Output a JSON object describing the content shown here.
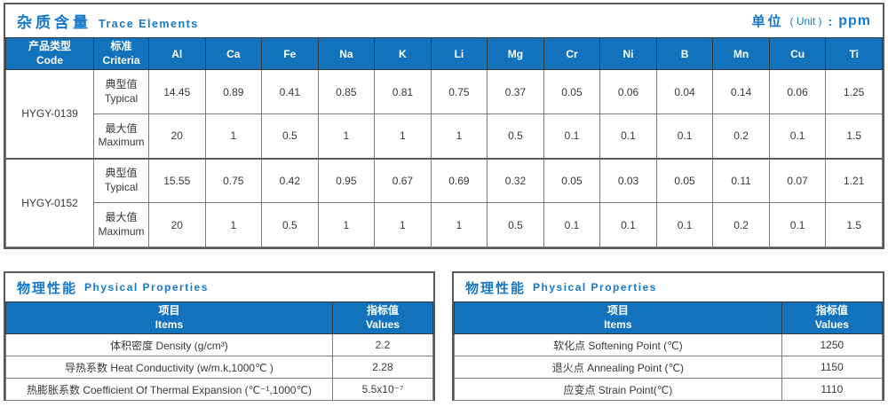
{
  "trace": {
    "title_cn": "杂质含量",
    "title_en": "Trace Elements",
    "unit": {
      "cn": "单位",
      "en": "( Unit )",
      "colon": ":",
      "value": "ppm"
    },
    "header": {
      "code_cn": "产品类型",
      "code_en": "Code",
      "criteria_cn": "标准",
      "criteria_en": "Criteria"
    },
    "elements": [
      "Al",
      "Ca",
      "Fe",
      "Na",
      "K",
      "Li",
      "Mg",
      "Cr",
      "Ni",
      "B",
      "Mn",
      "Cu",
      "Ti"
    ],
    "labels": {
      "typical_cn": "典型值",
      "typical_en": "Typical",
      "maximum_cn": "最大值",
      "maximum_en": "Maximum"
    },
    "rows": [
      {
        "code": "HYGY-0139",
        "typical": [
          "14.45",
          "0.89",
          "0.41",
          "0.85",
          "0.81",
          "0.75",
          "0.37",
          "0.05",
          "0.06",
          "0.04",
          "0.14",
          "0.06",
          "1.25"
        ],
        "maximum": [
          "20",
          "1",
          "0.5",
          "1",
          "1",
          "1",
          "0.5",
          "0.1",
          "0.1",
          "0.1",
          "0.2",
          "0.1",
          "1.5"
        ]
      },
      {
        "code": "HYGY-0152",
        "typical": [
          "15.55",
          "0.75",
          "0.42",
          "0.95",
          "0.67",
          "0.69",
          "0.32",
          "0.05",
          "0.03",
          "0.05",
          "0.11",
          "0.07",
          "1.21"
        ],
        "maximum": [
          "20",
          "1",
          "0.5",
          "1",
          "1",
          "1",
          "0.5",
          "0.1",
          "0.1",
          "0.1",
          "0.2",
          "0.1",
          "1.5"
        ]
      }
    ]
  },
  "phys_left": {
    "title_cn": "物理性能",
    "title_en": "Physical Properties",
    "header": {
      "item_cn": "项目",
      "item_en": "Items",
      "value_cn": "指标值",
      "value_en": "Values"
    },
    "rows": [
      {
        "item": "体积密度 Density (g/cm³)",
        "value": "2.2"
      },
      {
        "item": "导热系数 Heat Conductivity (w/m.k,1000℃ )",
        "value": "2.28"
      },
      {
        "item": "热膨胀系数 Coefficient Of Thermal Expansion (℃⁻¹,1000℃)",
        "value": "5.5x10⁻⁷"
      }
    ]
  },
  "phys_right": {
    "title_cn": "物理性能",
    "title_en": "Physical Properties",
    "header": {
      "item_cn": "项目",
      "item_en": "Items",
      "value_cn": "指标值",
      "value_en": "Values"
    },
    "rows": [
      {
        "item": "软化点 Softening Point (℃)",
        "value": "1250"
      },
      {
        "item": "退火点 Annealing Point (℃)",
        "value": "1150"
      },
      {
        "item": "应变点 Strain Point(℃)",
        "value": "1110"
      }
    ]
  },
  "colors": {
    "accent_blue": "#1678c8",
    "header_blue": "#1273bc",
    "border_dark": "#595959",
    "border_gray": "#7a7a7a"
  }
}
